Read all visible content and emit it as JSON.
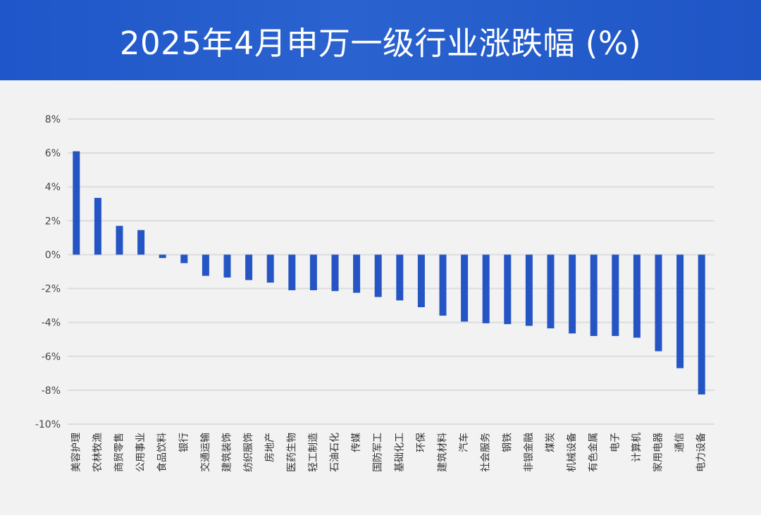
{
  "header": {
    "title": "2025年4月申万一级行业涨跌幅 (%)"
  },
  "chart_data": {
    "type": "bar",
    "title": "2025年4月申万一级行业涨跌幅 (%)",
    "xlabel": "",
    "ylabel": "",
    "ylim": [
      -10,
      8
    ],
    "yticks": [
      8,
      6,
      4,
      2,
      0,
      -2,
      -4,
      -6,
      -8,
      -10
    ],
    "ytick_labels": [
      "8%",
      "6%",
      "4%",
      "2%",
      "0%",
      "-2%",
      "-4%",
      "-6%",
      "-8%",
      "-10%"
    ],
    "grid": true,
    "legend": "none",
    "bar_color": "#2555c5",
    "grid_color": "#dcdcdc",
    "categories": [
      "美容护理",
      "农林牧渔",
      "商贸零售",
      "公用事业",
      "食品饮料",
      "银行",
      "交通运输",
      "建筑装饰",
      "纺织服饰",
      "房地产",
      "医药生物",
      "轻工制造",
      "石油石化",
      "传媒",
      "国防军工",
      "基础化工",
      "环保",
      "建筑材料",
      "汽车",
      "社会服务",
      "钢铁",
      "非银金融",
      "煤炭",
      "机械设备",
      "有色金属",
      "电子",
      "计算机",
      "家用电器",
      "通信",
      "电力设备"
    ],
    "values": [
      6.1,
      3.35,
      1.7,
      1.45,
      -0.2,
      -0.5,
      -1.25,
      -1.35,
      -1.5,
      -1.65,
      -2.1,
      -2.1,
      -2.15,
      -2.25,
      -2.5,
      -2.7,
      -3.1,
      -3.6,
      -3.95,
      -4.05,
      -4.1,
      -4.2,
      -4.35,
      -4.65,
      -4.8,
      -4.8,
      -4.9,
      -5.7,
      -6.7,
      -8.25
    ]
  }
}
